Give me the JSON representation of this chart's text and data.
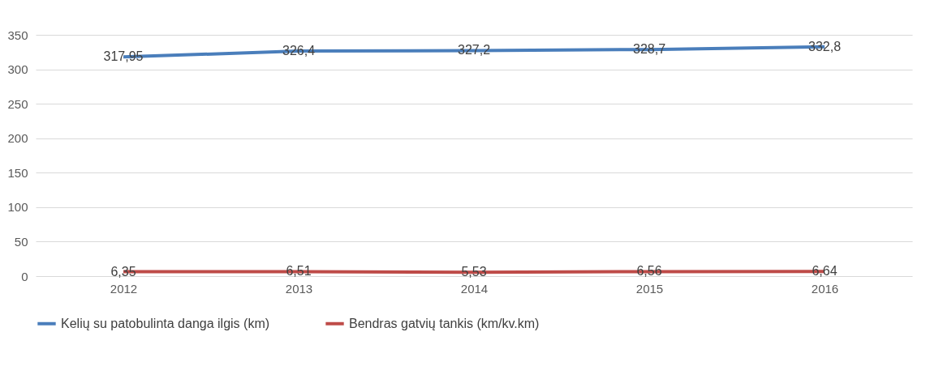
{
  "chart_data": {
    "type": "line",
    "categories": [
      "2012",
      "2013",
      "2014",
      "2015",
      "2016"
    ],
    "series": [
      {
        "name": "Kelių su patobulinta danga ilgis (km)",
        "color": "#4a7ebb",
        "values": [
          317.95,
          326.4,
          327.2,
          328.7,
          332.8
        ],
        "value_labels": [
          "317,95",
          "326,4",
          "327,2",
          "328,7",
          "332,8"
        ]
      },
      {
        "name": "Bendras gatvių tankis (km/kv.km)",
        "color": "#be4b48",
        "values": [
          6.35,
          6.51,
          5.53,
          6.56,
          6.64
        ],
        "value_labels": [
          "6,35",
          "6,51",
          "5,53",
          "6,56",
          "6,64"
        ]
      }
    ],
    "ylim": [
      0,
      350
    ],
    "yticks": [
      0,
      50,
      100,
      150,
      200,
      250,
      300,
      350
    ],
    "grid": "y",
    "legend": "bottom",
    "marker": "none",
    "line_style": "solid"
  }
}
